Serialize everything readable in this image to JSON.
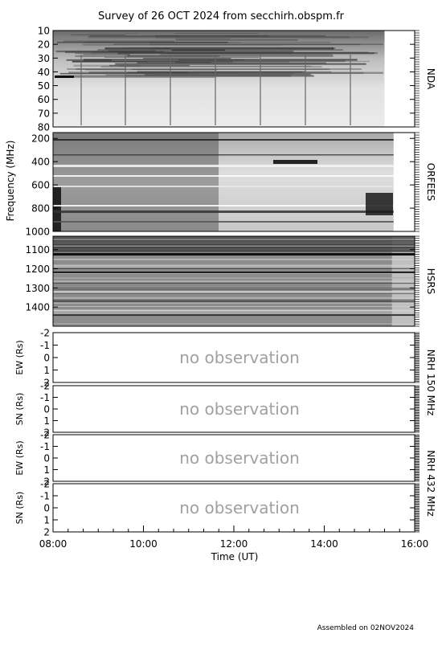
{
  "title": "Survey of 26 OCT 2024 from secchirh.obspm.fr",
  "footer": "Assembled on 02NOV2024",
  "chart_data": {
    "type": "heatmap",
    "title": "Survey of 26 OCT 2024 from secchirh.obspm.fr",
    "xlabel": "Time (UT)",
    "x_ticks": [
      "08:00",
      "10:00",
      "12:00",
      "14:00",
      "16:00"
    ],
    "xlim": [
      "08:00",
      "16:00"
    ],
    "shared_ylabel": "Frequency (MHz)",
    "panels": [
      {
        "name": "NDA",
        "ylabel": "",
        "ylim": [
          10,
          80
        ],
        "y_ticks": [
          10,
          20,
          30,
          40,
          50,
          60,
          70,
          80
        ],
        "status": "data",
        "data_end": "15:20"
      },
      {
        "name": "ORFEES",
        "ylabel": "",
        "ylim": [
          150,
          1000
        ],
        "y_ticks": [
          200,
          400,
          600,
          800,
          1000
        ],
        "status": "data",
        "data_end": "15:32"
      },
      {
        "name": "HSRS",
        "ylabel": "",
        "ylim": [
          1030,
          1500
        ],
        "y_ticks": [
          1100,
          1200,
          1300,
          1400
        ],
        "status": "data",
        "data_end": "15:30"
      },
      {
        "name": "",
        "ylabel": "EW (Rs)",
        "ylim": [
          -2,
          2
        ],
        "y_ticks": [
          -2,
          -1,
          0,
          1,
          2
        ],
        "status": "no observation"
      },
      {
        "name": "",
        "ylabel": "SN (Rs)",
        "ylim": [
          -2,
          2
        ],
        "y_ticks": [
          -2,
          -1,
          0,
          1,
          2
        ],
        "status": "no observation"
      },
      {
        "name": "",
        "ylabel": "EW (Rs)",
        "ylim": [
          -2,
          2
        ],
        "y_ticks": [
          -2,
          -1,
          0,
          1,
          2
        ],
        "status": "no observation"
      },
      {
        "name": "",
        "ylabel": "SN (Rs)",
        "ylim": [
          -2,
          2
        ],
        "y_ticks": [
          -2,
          -1,
          0,
          1,
          2
        ],
        "status": "no observation"
      }
    ],
    "group_labels": [
      "NRH 150 MHz",
      "NRH 432 MHz"
    ]
  }
}
